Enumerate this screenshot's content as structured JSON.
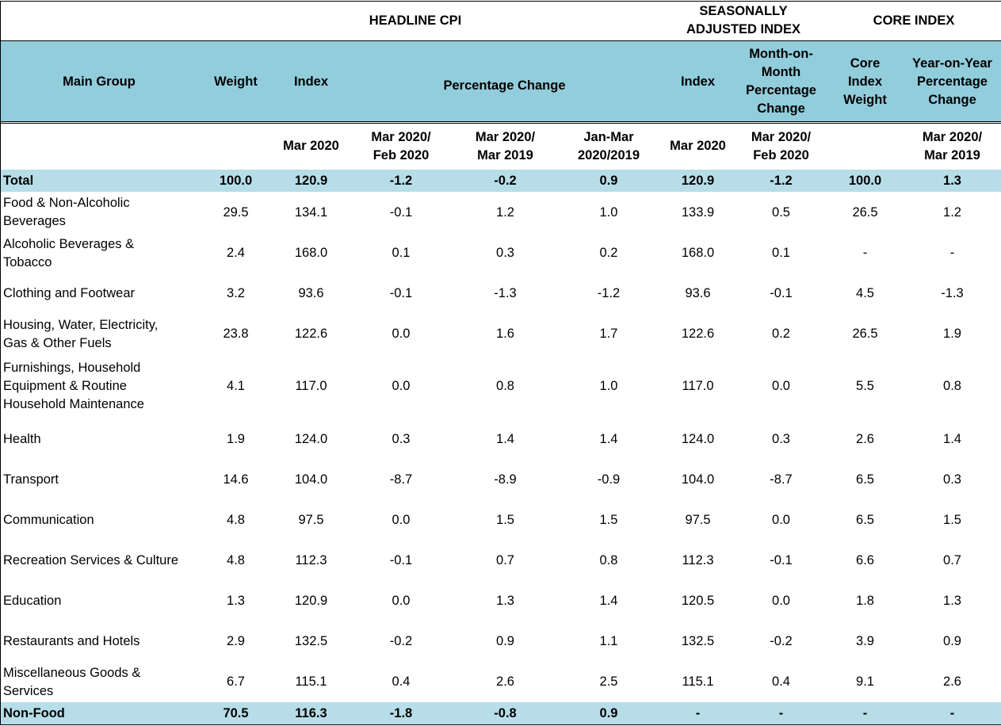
{
  "header": {
    "groups": [
      "HEADLINE CPI",
      "SEASONALLY\nADJUSTED INDEX",
      "CORE INDEX"
    ],
    "columns": [
      "Main Group",
      "Weight",
      "Index",
      "Percentage Change",
      "Index",
      "Month-on-\nMonth\nPercentage\nChange",
      "Core\nIndex\nWeight",
      "Year-on-Year\nPercentage\nChange"
    ],
    "subheaders": [
      null,
      null,
      "Mar 2020",
      "Mar 2020/\nFeb 2020",
      "Mar 2020/\nMar 2019",
      "Jan-Mar\n2020/2019",
      "Mar 2020",
      "Mar 2020/\nFeb 2020",
      null,
      "Mar 2020/\nMar 2019"
    ]
  },
  "table": {
    "rows": [
      [
        "Total",
        "100.0",
        "120.9",
        "-1.2",
        "-0.2",
        "0.9",
        "120.9",
        "-1.2",
        "100.0",
        "1.3"
      ],
      [
        "Food & Non-Alcoholic\nBeverages",
        "29.5",
        "134.1",
        "-0.1",
        "1.2",
        "1.0",
        "133.9",
        "0.5",
        "26.5",
        "1.2"
      ],
      [
        "Alcoholic Beverages &\nTobacco",
        "2.4",
        "168.0",
        "0.1",
        "0.3",
        "0.2",
        "168.0",
        "0.1",
        "-",
        "-"
      ],
      [
        "Clothing and Footwear",
        "3.2",
        "93.6",
        "-0.1",
        "-1.3",
        "-1.2",
        "93.6",
        "-0.1",
        "4.5",
        "-1.3"
      ],
      [
        "Housing, Water, Electricity,\nGas & Other Fuels",
        "23.8",
        "122.6",
        "0.0",
        "1.6",
        "1.7",
        "122.6",
        "0.2",
        "26.5",
        "1.9"
      ],
      [
        "Furnishings, Household\nEquipment  & Routine\nHousehold Maintenance",
        "4.1",
        "117.0",
        "0.0",
        "0.8",
        "1.0",
        "117.0",
        "0.0",
        "5.5",
        "0.8"
      ],
      [
        "Health",
        "1.9",
        "124.0",
        "0.3",
        "1.4",
        "1.4",
        "124.0",
        "0.3",
        "2.6",
        "1.4"
      ],
      [
        "Transport",
        "14.6",
        "104.0",
        "-8.7",
        "-8.9",
        "-0.9",
        "104.0",
        "-8.7",
        "6.5",
        "0.3"
      ],
      [
        "Communication",
        "4.8",
        "97.5",
        "0.0",
        "1.5",
        "1.5",
        "97.5",
        "0.0",
        "6.5",
        "1.5"
      ],
      [
        "Recreation Services & Culture",
        "4.8",
        "112.3",
        "-0.1",
        "0.7",
        "0.8",
        "112.3",
        "-0.1",
        "6.6",
        "0.7"
      ],
      [
        "Education",
        "1.3",
        "120.9",
        "0.0",
        "1.3",
        "1.4",
        "120.5",
        "0.0",
        "1.8",
        "1.3"
      ],
      [
        "Restaurants and Hotels",
        "2.9",
        "132.5",
        "-0.2",
        "0.9",
        "1.1",
        "132.5",
        "-0.2",
        "3.9",
        "0.9"
      ],
      [
        "Miscellaneous Goods &\nServices",
        "6.7",
        "115.1",
        "0.4",
        "2.6",
        "2.5",
        "115.1",
        "0.4",
        "9.1",
        "2.6"
      ],
      [
        "Non-Food",
        "70.5",
        "116.3",
        "-1.8",
        "-0.8",
        "0.9",
        "-",
        "-",
        "-",
        "-"
      ]
    ]
  }
}
